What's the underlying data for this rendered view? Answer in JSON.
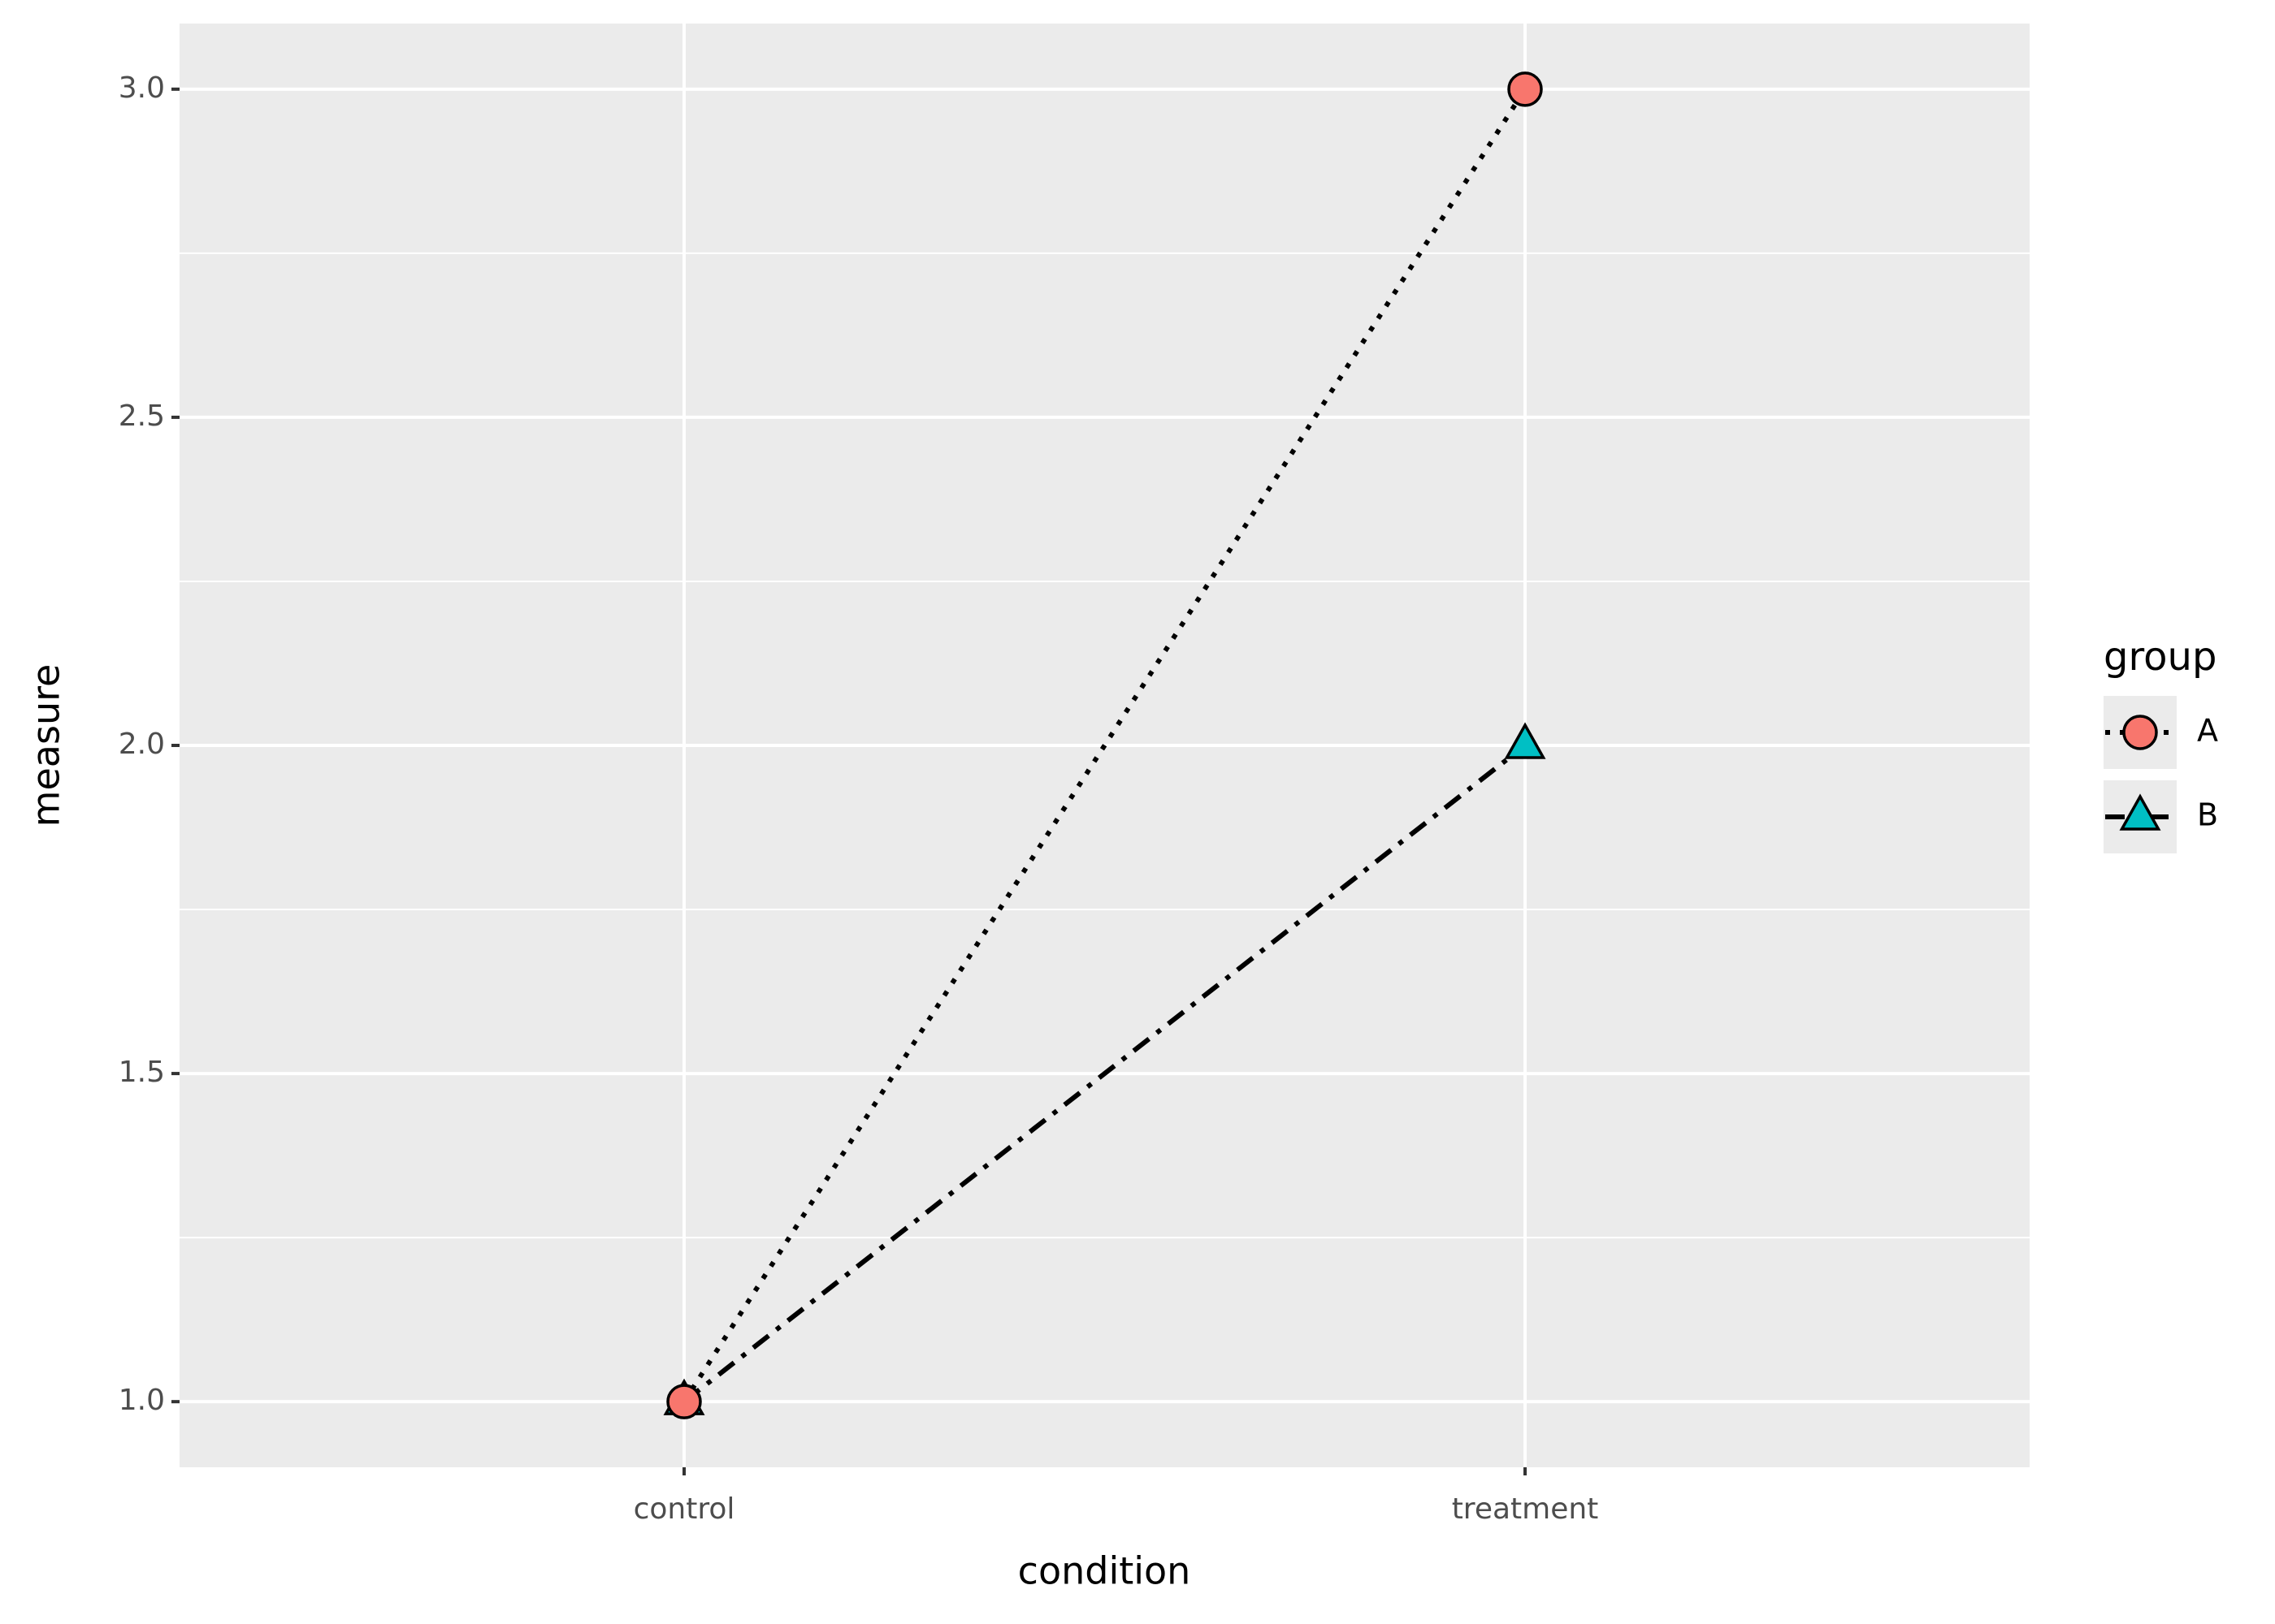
{
  "chart_data": {
    "type": "line",
    "x_label": "condition",
    "y_label": "measure",
    "categories": [
      "control",
      "treatment"
    ],
    "series": [
      {
        "name": "A",
        "color": "#f8766d",
        "marker": "circle",
        "linestyle": "dotted",
        "values": [
          1,
          3
        ]
      },
      {
        "name": "B",
        "color": "#00bfc4",
        "marker": "triangle",
        "linestyle": "dotdash",
        "values": [
          1,
          2
        ]
      }
    ],
    "ylim": [
      0.9,
      3.1
    ],
    "yticks": [
      {
        "value": 1,
        "label": "1.0"
      },
      {
        "value": 1.5,
        "label": "1.5"
      },
      {
        "value": 2,
        "label": "2.0"
      },
      {
        "value": 2.5,
        "label": "2.5"
      },
      {
        "value": 3,
        "label": "3.0"
      }
    ],
    "grid": true,
    "minor_grid": true,
    "legend_title": "group",
    "legend_position": "right"
  }
}
